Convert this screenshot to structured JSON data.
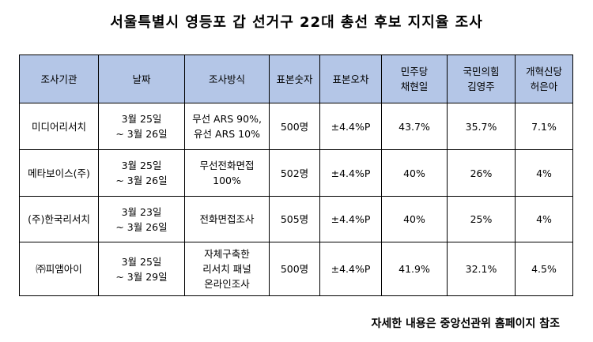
{
  "title": "서울특별시 영등포 갑 선거구 22대 총선 후보 지지율 조사",
  "headers": [
    [
      "조사기관"
    ],
    [
      "날짜"
    ],
    [
      "조사방식"
    ],
    [
      "표본숫자"
    ],
    [
      "표본오차"
    ],
    [
      "민주당",
      "채현일"
    ],
    [
      "국민의힘",
      "김영주"
    ],
    [
      "개혁신당",
      "허은아"
    ]
  ],
  "rows": [
    {
      "agency": "미디어리서치",
      "date": [
        "3월 25일",
        "~ 3월 26일"
      ],
      "method": [
        "무선 ARS 90%,",
        "유선 ARS 10%"
      ],
      "sample": "500명",
      "error": "±4.4%P",
      "dem": "43.7%",
      "ppp": "35.7%",
      "reform": "7.1%"
    },
    {
      "agency": "메타보이스(주)",
      "date": [
        "3월 25일",
        "~ 3월 26일"
      ],
      "method": [
        "무선전화면접",
        "100%"
      ],
      "sample": "502명",
      "error": "±4.4%P",
      "dem": "40%",
      "ppp": "26%",
      "reform": "4%"
    },
    {
      "agency": "(주)한국리서치",
      "date": [
        "3월 23일",
        "~ 3월 26일"
      ],
      "method": [
        "전화면접조사"
      ],
      "sample": "505명",
      "error": "±4.4%P",
      "dem": "40%",
      "ppp": "25%",
      "reform": "4%"
    },
    {
      "agency": "㈜피앰아이",
      "date": [
        "3월 25일",
        "~ 3월 29일"
      ],
      "method": [
        "자체구축한",
        "리서치 패널",
        "온라인조사"
      ],
      "sample": "500명",
      "error": "±4.4%P",
      "dem": "41.9%",
      "ppp": "32.1%",
      "reform": "4.5%"
    }
  ],
  "footnote": "자세한 내용은 중앙선관위 홈페이지 참조"
}
